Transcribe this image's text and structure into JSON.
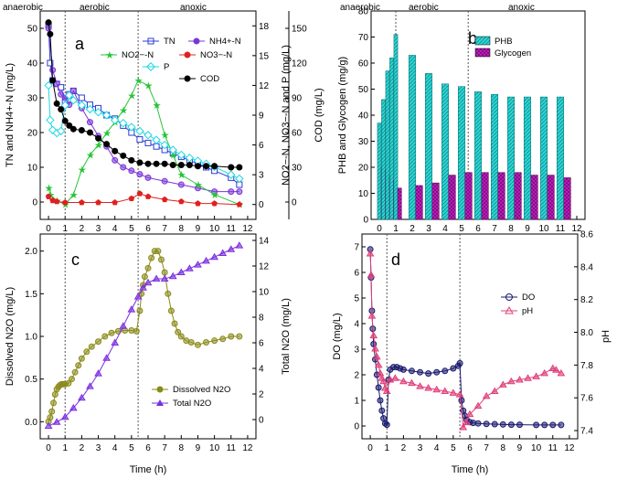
{
  "figure": {
    "xlabel": "Time (h)"
  },
  "chart_data": [
    {
      "type": "line",
      "panel": "a",
      "phases": [
        "anaerobic",
        "aerobic",
        "anoxic"
      ],
      "phase_boundaries": [
        1.0,
        5.4
      ],
      "xlim": [
        -0.5,
        12.5
      ],
      "xticks": [
        "0",
        "1",
        "2",
        "3",
        "4",
        "5",
        "6",
        "7",
        "8",
        "9",
        "10",
        "11",
        "12"
      ],
      "ylabel_left": "TN and NH4+-N  (mg/L)",
      "ylim_left": [
        -5,
        55
      ],
      "yticks_left": [
        "0",
        "10",
        "20",
        "30",
        "40",
        "50"
      ],
      "ylabel_right1": "NO2−-N, NO3−-N and P (mg/L)",
      "ylim_right1": [
        -1.5,
        19.5
      ],
      "yticks_right1": [
        "0",
        "3",
        "6",
        "9",
        "12",
        "15",
        "18"
      ],
      "ylabel_right2": "COD (mg/L)",
      "ylim_right2": [
        -15,
        165
      ],
      "yticks_right2": [
        "0",
        "30",
        "60",
        "90",
        "120",
        "150"
      ],
      "series": [
        {
          "name": "TN",
          "axis": "left",
          "color": "#2b3cd6",
          "marker": "square",
          "x": [
            0,
            0.1,
            0.25,
            0.5,
            0.75,
            1.0,
            1.25,
            1.5,
            2,
            2.5,
            3,
            3.5,
            4,
            4.5,
            5,
            5.5,
            6,
            6.5,
            7,
            7.5,
            8,
            8.5,
            9,
            9.5,
            10,
            11,
            11.5
          ],
          "y": [
            51,
            40,
            35,
            34,
            33,
            29,
            31,
            32,
            30,
            28,
            27,
            25,
            24,
            22,
            20,
            18,
            17,
            16,
            15,
            14,
            13,
            12,
            11,
            10,
            9,
            7,
            5
          ]
        },
        {
          "name": "NH4+-N",
          "axis": "left",
          "color": "#7a35d8",
          "marker": "half-circle",
          "x": [
            0,
            0.25,
            0.5,
            0.75,
            1.0,
            1.25,
            1.5,
            2,
            2.5,
            3,
            3.5,
            4,
            4.5,
            5,
            5.5,
            6,
            7,
            8,
            9,
            10,
            11,
            11.5
          ],
          "y": [
            50,
            38,
            34,
            31,
            30,
            28,
            32,
            27,
            23,
            19,
            16,
            12,
            10,
            9,
            8,
            7,
            6,
            5,
            4,
            3,
            3,
            3
          ]
        },
        {
          "name": "NO2−-N",
          "axis": "right1",
          "color": "#27c438",
          "marker": "star",
          "x": [
            0,
            0.1,
            0.5,
            1.0,
            1.5,
            2,
            2.5,
            3,
            3.5,
            4,
            4.5,
            5,
            5.4,
            6,
            6.5,
            7,
            7.5,
            8,
            9,
            10,
            11.5
          ],
          "y": [
            1.7,
            1.0,
            0.4,
            0.0,
            1.0,
            3.5,
            5.0,
            6.0,
            7.2,
            8.3,
            9.5,
            11.0,
            12.5,
            12.0,
            10.0,
            7.0,
            5.0,
            3.0,
            2.0,
            1.0,
            0.0
          ]
        },
        {
          "name": "NO3−-N",
          "axis": "right1",
          "color": "#e02020",
          "marker": "pentagon",
          "x": [
            0,
            0.25,
            0.5,
            1.0,
            2,
            3,
            4,
            5,
            5.5,
            6,
            7,
            8,
            9,
            10,
            11.5
          ],
          "y": [
            0.8,
            0.4,
            0.3,
            0.2,
            0.2,
            0.2,
            0.2,
            0.6,
            1.1,
            0.8,
            0.5,
            0.3,
            0.1,
            0.1,
            0.0
          ]
        },
        {
          "name": "P",
          "axis": "right1",
          "color": "#1ed8e0",
          "marker": "diamond",
          "x": [
            0,
            0.1,
            0.25,
            0.5,
            0.75,
            1.0,
            1.25,
            1.5,
            2,
            2.5,
            3,
            3.5,
            4,
            4.5,
            5,
            5.5,
            6,
            6.5,
            7,
            7.5,
            8,
            8.5,
            9,
            9.5,
            10,
            11,
            11.5
          ],
          "y": [
            12.0,
            8.5,
            7.5,
            7.2,
            7.4,
            10.0,
            11.0,
            10.5,
            10.0,
            9.6,
            9.3,
            9.0,
            8.5,
            8.2,
            7.8,
            7.4,
            7.0,
            6.5,
            6.0,
            5.5,
            5.0,
            4.7,
            4.4,
            4.1,
            3.8,
            3.0,
            2.6
          ]
        },
        {
          "name": "COD",
          "axis": "right2",
          "color": "#000000",
          "marker": "circle",
          "x": [
            0,
            0.1,
            0.25,
            0.5,
            0.75,
            1.0,
            1.25,
            1.5,
            2,
            2.5,
            3,
            3.5,
            4,
            4.5,
            5,
            5.5,
            6,
            6.5,
            7,
            7.5,
            8,
            8.5,
            9,
            9.5,
            10,
            11,
            11.5
          ],
          "y": [
            155,
            145,
            105,
            85,
            80,
            70,
            66,
            63,
            62,
            60,
            55,
            50,
            44,
            40,
            36,
            34,
            33,
            33,
            33,
            32,
            32,
            32,
            31,
            31,
            31,
            30,
            30
          ]
        }
      ]
    },
    {
      "type": "bar",
      "panel": "b",
      "phases": [
        "anaerobic",
        "aerobic",
        "anoxic"
      ],
      "phase_boundaries": [
        1.0,
        5.4
      ],
      "xlim": [
        -0.5,
        12.5
      ],
      "xticks": [
        "0",
        "1",
        "2",
        "3",
        "4",
        "5",
        "6",
        "7",
        "8",
        "9",
        "10",
        "11",
        "12"
      ],
      "ylabel": "PHB and Glycogen (mg/g)",
      "ylim": [
        0,
        80
      ],
      "yticks": [
        "0",
        "10",
        "20",
        "30",
        "40",
        "50",
        "60",
        "70",
        "80"
      ],
      "series": [
        {
          "name": "PHB",
          "color": "#2ed4d4",
          "pattern": "hatch-cyan",
          "x": [
            0,
            0.25,
            0.5,
            0.75,
            1.0,
            2,
            3,
            4,
            5,
            6,
            7,
            8,
            9,
            10,
            11
          ],
          "y": [
            37,
            46,
            57,
            62,
            71,
            63,
            56,
            52,
            51,
            49,
            48,
            47,
            47,
            47,
            47
          ]
        },
        {
          "name": "Glycogen",
          "color": "#c81ec8",
          "pattern": "hatch-magenta",
          "x": [
            0,
            0.25,
            0.5,
            0.75,
            1.0,
            2,
            3,
            4,
            5,
            6,
            7,
            8,
            9,
            10,
            11
          ],
          "y": [
            20,
            19,
            17,
            15,
            12,
            13,
            14,
            17,
            18,
            18,
            18,
            18,
            17,
            17,
            16
          ]
        }
      ]
    },
    {
      "type": "line",
      "panel": "c",
      "phase_boundaries": [
        1.0,
        5.4
      ],
      "xlim": [
        -0.5,
        12.5
      ],
      "xticks": [
        "0",
        "1",
        "2",
        "3",
        "4",
        "5",
        "6",
        "7",
        "8",
        "9",
        "10",
        "11",
        "12"
      ],
      "ylabel_left": "Dissolved N2O (mg/L)",
      "ylim_left": [
        -0.2,
        2.2
      ],
      "yticks_left": [
        "0.0",
        "0.5",
        "1.0",
        "1.5",
        "2.0"
      ],
      "ylabel_right": "Total N2O (mg/L)",
      "ylim_right": [
        -1.5,
        14.5
      ],
      "yticks_right": [
        "0",
        "2",
        "4",
        "6",
        "8",
        "10",
        "12",
        "14"
      ],
      "series": [
        {
          "name": "Dissolved N2O",
          "axis": "left",
          "color": "#8a8a1a",
          "marker": "half-circle",
          "x": [
            0,
            0.1,
            0.2,
            0.3,
            0.4,
            0.5,
            0.6,
            0.7,
            0.8,
            0.9,
            1.0,
            1.2,
            1.4,
            1.6,
            1.8,
            2.0,
            2.3,
            2.6,
            3.0,
            3.4,
            3.8,
            4.2,
            4.6,
            5.0,
            5.3,
            5.5,
            5.6,
            5.7,
            5.8,
            6.0,
            6.2,
            6.4,
            6.6,
            6.8,
            7.0,
            7.2,
            7.4,
            7.6,
            7.8,
            8.0,
            8.3,
            8.6,
            9.0,
            9.5,
            10.0,
            10.5,
            11.0,
            11.5
          ],
          "y": [
            0.0,
            0.05,
            0.12,
            0.22,
            0.32,
            0.38,
            0.41,
            0.43,
            0.44,
            0.44,
            0.44,
            0.45,
            0.5,
            0.58,
            0.66,
            0.74,
            0.82,
            0.88,
            0.94,
            1.0,
            1.04,
            1.06,
            1.07,
            1.07,
            1.06,
            1.3,
            1.5,
            1.6,
            1.7,
            1.8,
            1.92,
            2.0,
            2.0,
            1.9,
            1.75,
            1.5,
            1.3,
            1.15,
            1.05,
            1.0,
            0.95,
            0.93,
            0.9,
            0.93,
            0.95,
            0.97,
            1.0,
            1.0
          ]
        },
        {
          "name": "Total N2O",
          "axis": "right",
          "color": "#7b2ee0",
          "marker": "triangle",
          "x": [
            0,
            0.5,
            1,
            1.5,
            2,
            2.5,
            3,
            3.5,
            4,
            4.5,
            5,
            5.4,
            5.7,
            6,
            6.5,
            7,
            7.5,
            8,
            8.5,
            9,
            9.5,
            10,
            10.5,
            11,
            11.5
          ],
          "y": [
            -0.5,
            -0.2,
            0.2,
            0.9,
            1.7,
            2.6,
            3.6,
            4.8,
            6.0,
            7.3,
            8.6,
            9.6,
            10.3,
            10.7,
            11.0,
            11.0,
            11.2,
            11.5,
            11.8,
            12.1,
            12.4,
            12.7,
            13.0,
            13.3,
            13.6
          ]
        }
      ]
    },
    {
      "type": "line",
      "panel": "d",
      "phase_boundaries": [
        1.0,
        5.4
      ],
      "xlim": [
        -0.5,
        12.5
      ],
      "xticks": [
        "0",
        "1",
        "2",
        "3",
        "4",
        "5",
        "6",
        "7",
        "8",
        "9",
        "10",
        "11",
        "12"
      ],
      "ylabel_left": "DO (mg/L)",
      "ylim_left": [
        -0.5,
        7.5
      ],
      "yticks_left": [
        "0",
        "1",
        "2",
        "3",
        "4",
        "5",
        "6",
        "7"
      ],
      "ylabel_right": "pH",
      "ylim_right": [
        7.35,
        8.6
      ],
      "yticks_right": [
        "7.4",
        "7.6",
        "7.8",
        "8.0",
        "8.2",
        "8.4",
        "8.6"
      ],
      "series": [
        {
          "name": "DO",
          "axis": "left",
          "color": "#1a1a6e",
          "marker": "half-circle",
          "x": [
            0,
            0.05,
            0.1,
            0.15,
            0.2,
            0.3,
            0.4,
            0.5,
            0.6,
            0.7,
            0.8,
            0.9,
            1.0,
            1.1,
            1.2,
            1.4,
            1.6,
            1.8,
            2.0,
            2.5,
            3.0,
            3.5,
            4.0,
            4.5,
            5.0,
            5.3,
            5.4,
            5.5,
            5.6,
            5.7,
            5.8,
            6.0,
            6.2,
            6.5,
            7,
            7.5,
            8,
            8.5,
            9,
            10,
            10.5,
            11,
            11.5
          ],
          "y": [
            6.9,
            5.8,
            4.5,
            3.8,
            3.2,
            2.6,
            2.0,
            1.5,
            1.0,
            0.6,
            0.3,
            0.1,
            0.05,
            1.8,
            2.2,
            2.3,
            2.3,
            2.25,
            2.2,
            2.15,
            2.1,
            2.05,
            2.1,
            2.15,
            2.25,
            2.35,
            2.45,
            1.0,
            0.6,
            0.4,
            0.25,
            0.15,
            0.12,
            0.1,
            0.08,
            0.07,
            0.06,
            0.05,
            0.05,
            0.04,
            0.04,
            0.04,
            0.04
          ]
        },
        {
          "name": "pH",
          "axis": "right",
          "color": "#e0407a",
          "marker": "triangle",
          "x": [
            0,
            0.05,
            0.1,
            0.2,
            0.3,
            0.4,
            0.5,
            0.6,
            0.7,
            0.8,
            0.9,
            1.0,
            1.2,
            1.5,
            2.0,
            2.5,
            3.0,
            3.5,
            4.0,
            4.5,
            5.0,
            5.4,
            5.6,
            5.8,
            6.0,
            6.5,
            7.0,
            7.5,
            8.0,
            8.5,
            9.0,
            9.5,
            10.0,
            10.5,
            11.0,
            11.2,
            11.5
          ],
          "y": [
            8.48,
            8.35,
            8.1,
            7.98,
            7.9,
            7.85,
            7.8,
            7.75,
            7.72,
            7.7,
            7.66,
            7.64,
            7.71,
            7.72,
            7.7,
            7.69,
            7.67,
            7.66,
            7.65,
            7.64,
            7.63,
            7.62,
            7.42,
            7.45,
            7.5,
            7.55,
            7.61,
            7.64,
            7.68,
            7.7,
            7.71,
            7.72,
            7.73,
            7.75,
            7.78,
            7.77,
            7.75
          ]
        }
      ]
    }
  ],
  "panels": {
    "a": {
      "label": "a",
      "ylabel_left": "TN and NH4+-N  (mg/L)",
      "ylabel_right1": "NO2−-N, NO3−-N and P (mg/L)",
      "ylabel_right2": "COD (mg/L)",
      "phases": [
        "anaerobic",
        "aerobic",
        "anoxic"
      ],
      "legend": [
        "TN",
        "NH4+-N",
        "NO2−-N",
        "NO3−-N",
        "P",
        "COD"
      ]
    },
    "b": {
      "label": "b",
      "ylabel": "PHB and Glycogen (mg/g)",
      "phases": [
        "anaerobic",
        "aerobic",
        "anoxic"
      ],
      "legend": [
        "PHB",
        "Glycogen"
      ]
    },
    "c": {
      "label": "c",
      "ylabel_left": "Dissolved N2O (mg/L)",
      "ylabel_right": "Total N2O (mg/L)",
      "legend": [
        "Dissolved N2O",
        "Total N2O"
      ]
    },
    "d": {
      "label": "d",
      "ylabel_left": "DO (mg/L)",
      "ylabel_right": "pH",
      "legend": [
        "DO",
        "pH"
      ]
    }
  }
}
